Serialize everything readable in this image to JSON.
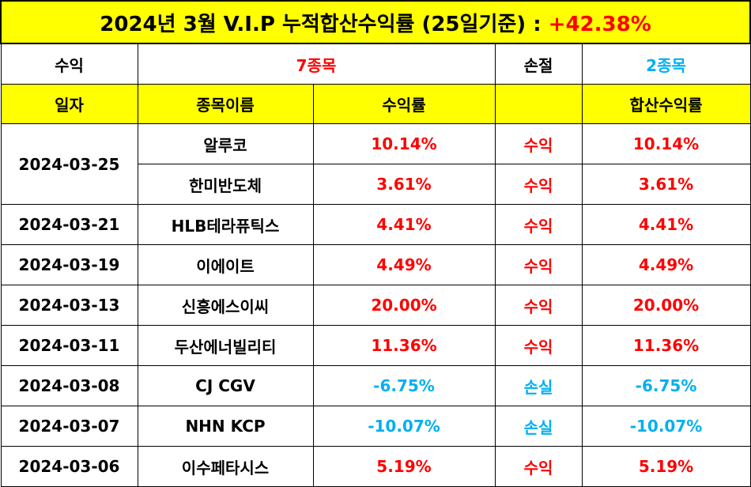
{
  "title": {
    "text": "2024년 3월 V.I.P 누적합산수익률 (25일기준) : ",
    "return": "+42.38%"
  },
  "summary": {
    "profit_label": "수익",
    "profit_count": "7종목",
    "loss_label": "손절",
    "loss_count": "2종목"
  },
  "headers": {
    "date": "일자",
    "name": "종목이름",
    "return": "수익률",
    "blank": "",
    "total": "합산수익률"
  },
  "colors": {
    "header_bg": "#ffff00",
    "profit": "#ff0000",
    "loss": "#00b0f0"
  },
  "rows": [
    {
      "date": "2024-03-25",
      "name": "알루코",
      "return": "10.14%",
      "result": "수익",
      "total": "10.14%",
      "type": "pos"
    },
    {
      "date": "",
      "name": "한미반도체",
      "return": "3.61%",
      "result": "수익",
      "total": "3.61%",
      "type": "pos"
    },
    {
      "date": "2024-03-21",
      "name": "HLB테라퓨틱스",
      "return": "4.41%",
      "result": "수익",
      "total": "4.41%",
      "type": "pos"
    },
    {
      "date": "2024-03-19",
      "name": "이에이트",
      "return": "4.49%",
      "result": "수익",
      "total": "4.49%",
      "type": "pos"
    },
    {
      "date": "2024-03-13",
      "name": "신흥에스이씨",
      "return": "20.00%",
      "result": "수익",
      "total": "20.00%",
      "type": "pos"
    },
    {
      "date": "2024-03-11",
      "name": "두산에너빌리티",
      "return": "11.36%",
      "result": "수익",
      "total": "11.36%",
      "type": "pos"
    },
    {
      "date": "2024-03-08",
      "name": "CJ CGV",
      "return": "-6.75%",
      "result": "손실",
      "total": "-6.75%",
      "type": "neg"
    },
    {
      "date": "2024-03-07",
      "name": "NHN KCP",
      "return": "-10.07%",
      "result": "손실",
      "total": "-10.07%",
      "type": "neg"
    },
    {
      "date": "2024-03-06",
      "name": "이수페타시스",
      "return": "5.19%",
      "result": "수익",
      "total": "5.19%",
      "type": "pos"
    }
  ]
}
